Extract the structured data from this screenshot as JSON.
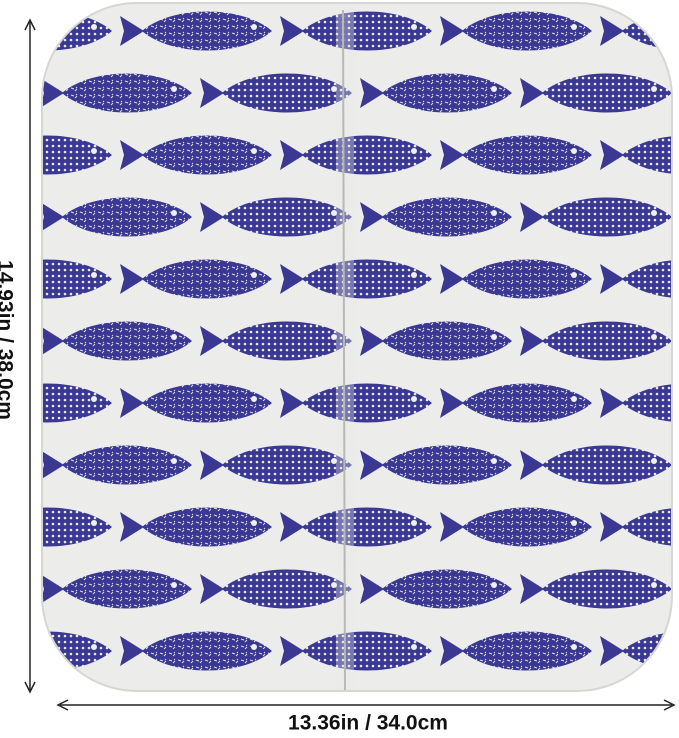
{
  "dimensions": {
    "height_label": "14.93in / 38.0cm",
    "width_label": "13.36in / 34.0cm"
  }
}
